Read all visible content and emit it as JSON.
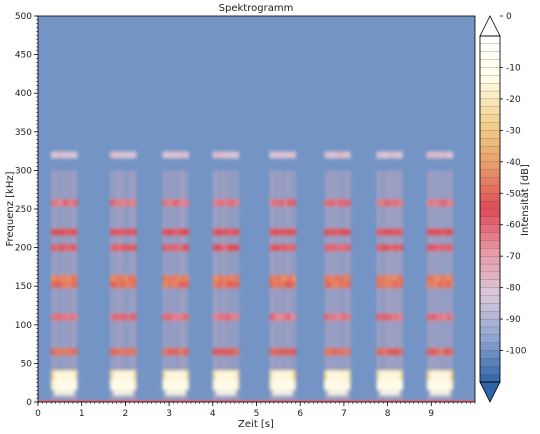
{
  "chart_data": {
    "type": "heatmap",
    "title": "Spektrogramm",
    "xlabel": "Zeit [s]",
    "ylabel": "Frequenz [kHz]",
    "colorbar_label": "Intensität [dB]",
    "xlim": [
      0,
      10
    ],
    "ylim": [
      0,
      500
    ],
    "clim": [
      -110,
      0
    ],
    "x_ticks": [
      "0",
      "1",
      "2",
      "3",
      "4",
      "5",
      "6",
      "7",
      "8",
      "9"
    ],
    "y_ticks": [
      "0",
      "50",
      "100",
      "150",
      "200",
      "250",
      "300",
      "350",
      "400",
      "450",
      "500"
    ],
    "colorbar_ticks": [
      "0",
      "-10",
      "-20",
      "-30",
      "-40",
      "-50",
      "-60",
      "-70",
      "-80",
      "-90",
      "-100"
    ],
    "background_level_db": -100,
    "bursts": [
      {
        "start": 0.3,
        "end": 0.9
      },
      {
        "start": 1.65,
        "end": 2.25
      },
      {
        "start": 2.85,
        "end": 3.45
      },
      {
        "start": 4.0,
        "end": 4.6
      },
      {
        "start": 5.3,
        "end": 5.9
      },
      {
        "start": 6.55,
        "end": 7.15
      },
      {
        "start": 7.75,
        "end": 8.35
      },
      {
        "start": 8.9,
        "end": 9.5
      }
    ],
    "bands": [
      {
        "freq": 22,
        "db": -15
      },
      {
        "freq": 35,
        "db": -25
      },
      {
        "freq": 65,
        "db": -50
      },
      {
        "freq": 110,
        "db": -62
      },
      {
        "freq": 152,
        "db": -48
      },
      {
        "freq": 160,
        "db": -45
      },
      {
        "freq": 200,
        "db": -58
      },
      {
        "freq": 220,
        "db": -55
      },
      {
        "freq": 258,
        "db": -62
      },
      {
        "freq": 320,
        "db": -80
      }
    ],
    "colormap": [
      "#2f65a8",
      "#8da5cf",
      "#d9c8dc",
      "#e89aa6",
      "#dd4a57",
      "#e79c69",
      "#f2d28e",
      "#fffce6",
      "#ffffff"
    ],
    "grid": false
  }
}
